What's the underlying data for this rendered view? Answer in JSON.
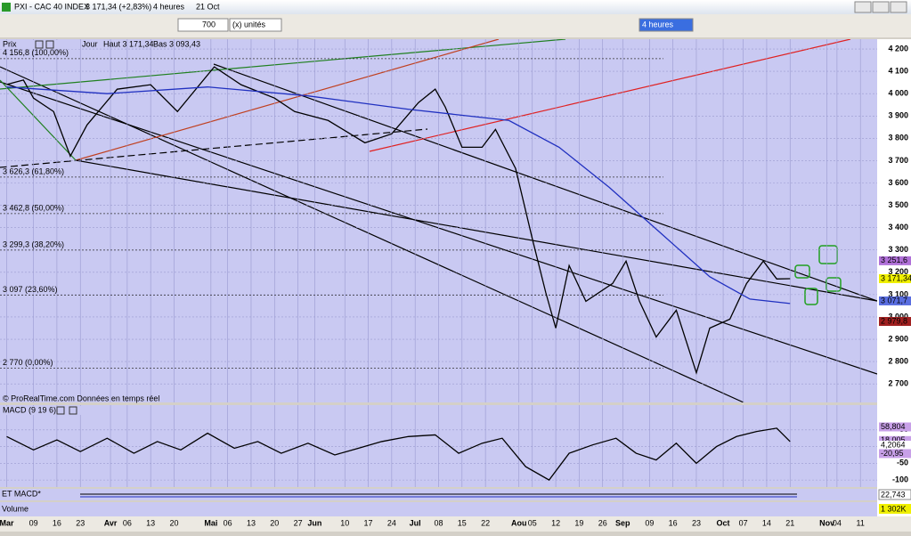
{
  "window": {
    "title": "PXI - CAC 40 INDEX",
    "price": "3 171,34 (+2,83%)",
    "period": "4 heures",
    "date": "21 Oct"
  },
  "toolbar": {
    "units_count": "700",
    "units": "(x) unités",
    "timeframe": "4 heures"
  },
  "chart_data": [
    {
      "type": "line",
      "title": "Prix",
      "period": "Jour",
      "high": "Haut 3 171,34",
      "low": "Bas 3 093,43",
      "source": "© ProRealTime.com  Données en temps réel",
      "xlim": [
        -2,
        260
      ],
      "ylim": [
        2617,
        4244
      ],
      "xticks": [
        {
          "value": 0,
          "label": "Mar"
        },
        {
          "value": 8,
          "label": "09"
        },
        {
          "value": 15,
          "label": "16"
        },
        {
          "value": 22,
          "label": "23"
        },
        {
          "value": 31,
          "label": "Avr"
        },
        {
          "value": 36,
          "label": "06"
        },
        {
          "value": 43,
          "label": "13"
        },
        {
          "value": 50,
          "label": "20"
        },
        {
          "value": 61,
          "label": "Mai"
        },
        {
          "value": 66,
          "label": "06"
        },
        {
          "value": 73,
          "label": "13"
        },
        {
          "value": 80,
          "label": "20"
        },
        {
          "value": 87,
          "label": "27"
        },
        {
          "value": 92,
          "label": "Jun"
        },
        {
          "value": 101,
          "label": "10"
        },
        {
          "value": 108,
          "label": "17"
        },
        {
          "value": 115,
          "label": "24"
        },
        {
          "value": 122,
          "label": "Jul"
        },
        {
          "value": 129,
          "label": "08"
        },
        {
          "value": 136,
          "label": "15"
        },
        {
          "value": 143,
          "label": "22"
        },
        {
          "value": 153,
          "label": "Aou"
        },
        {
          "value": 157,
          "label": "05"
        },
        {
          "value": 164,
          "label": "12"
        },
        {
          "value": 171,
          "label": "19"
        },
        {
          "value": 178,
          "label": "26"
        },
        {
          "value": 184,
          "label": "Sep"
        },
        {
          "value": 192,
          "label": "09"
        },
        {
          "value": 199,
          "label": "16"
        },
        {
          "value": 206,
          "label": "23"
        },
        {
          "value": 214,
          "label": "Oct"
        },
        {
          "value": 220,
          "label": "07"
        },
        {
          "value": 227,
          "label": "14"
        },
        {
          "value": 234,
          "label": "21"
        },
        {
          "value": 245,
          "label": "Nov"
        },
        {
          "value": 248,
          "label": "04"
        },
        {
          "value": 255,
          "label": "11"
        }
      ],
      "yticks": [
        {
          "value": 4200,
          "label": "4 200"
        },
        {
          "value": 4100,
          "label": "4 100"
        },
        {
          "value": 4000,
          "label": "4 000"
        },
        {
          "value": 3900,
          "label": "3 900"
        },
        {
          "value": 3800,
          "label": "3 800"
        },
        {
          "value": 3700,
          "label": "3 700"
        },
        {
          "value": 3600,
          "label": "3 600"
        },
        {
          "value": 3500,
          "label": "3 500"
        },
        {
          "value": 3400,
          "label": "3 400"
        },
        {
          "value": 3300,
          "label": "3 300"
        },
        {
          "value": 3200,
          "label": "3 200"
        },
        {
          "value": 3100,
          "label": "3 100"
        },
        {
          "value": 3000,
          "label": "3 000"
        },
        {
          "value": 2900,
          "label": "2 900"
        },
        {
          "value": 2800,
          "label": "2 800"
        },
        {
          "value": 2700,
          "label": "2 700"
        }
      ],
      "levels": [
        {
          "value": 4156.8,
          "label": "4 156,8 (100,00%)"
        },
        {
          "value": 3626.3,
          "label": "3 626,3 (61,80%)"
        },
        {
          "value": 3462.8,
          "label": "3 462,8 (50,00%)"
        },
        {
          "value": 3299.3,
          "label": "3 299,3 (38,20%)"
        },
        {
          "value": 3097,
          "label": "3 097 (23,60%)"
        },
        {
          "value": 2770,
          "label": "2 770 (0,00%)"
        }
      ],
      "price_labels": [
        {
          "value": 3251.6,
          "label": "3 251,6",
          "color": "#b070d8"
        },
        {
          "value": 3171.34,
          "label": "3 171,34",
          "color": "#f0f000"
        },
        {
          "value": 3071.7,
          "label": "3 071,7",
          "color": "#5a6ee0"
        },
        {
          "value": 2979.8,
          "label": "2 979,8",
          "color": "#a02020"
        }
      ],
      "series": [
        {
          "color": "#000000",
          "x": [
            0,
            5,
            8,
            14,
            19,
            24,
            33,
            43,
            51,
            62,
            70,
            80,
            86,
            96,
            107,
            115,
            123,
            128,
            131,
            136,
            142,
            146,
            152,
            157,
            161,
            164,
            168,
            173,
            181,
            185,
            189,
            194,
            200,
            206,
            210,
            216,
            221,
            226,
            230,
            234
          ],
          "values": [
            4041,
            4061,
            3980,
            3920,
            3720,
            3860,
            4020,
            4040,
            3920,
            4120,
            4040,
            3980,
            3920,
            3880,
            3780,
            3820,
            3960,
            4020,
            3940,
            3760,
            3760,
            3840,
            3665,
            3350,
            3110,
            2950,
            3230,
            3070,
            3150,
            3250,
            3070,
            2910,
            3030,
            2750,
            2950,
            2990,
            3150,
            3250,
            3170,
            3171.34
          ]
        },
        {
          "color": "#2030c0",
          "x": [
            0,
            30,
            60,
            90,
            120,
            150,
            165,
            180,
            195,
            210,
            222,
            234
          ],
          "values": [
            4030,
            4000,
            4030,
            3990,
            3930,
            3880,
            3760,
            3580,
            3380,
            3180,
            3080,
            3060
          ]
        }
      ]
    },
    {
      "type": "line",
      "title": "MACD (9 19 6)",
      "xlim": [
        -2,
        260
      ],
      "ylim": [
        -121,
        124
      ],
      "yticks": [
        50,
        0,
        -50,
        -100
      ],
      "price_labels": [
        {
          "value": 58.804,
          "label": "58,804",
          "color": "#c8a0e8"
        },
        {
          "value": 18.005,
          "label": "18,005",
          "color": "#c8a0e8"
        },
        {
          "value": 4.2064,
          "label": "4,2064",
          "color": "#ffffff"
        },
        {
          "value": -20.95,
          "label": "-20,95",
          "color": "#c8a0e8"
        }
      ],
      "series": [
        {
          "color": "#000000",
          "x": [
            0,
            8,
            15,
            22,
            30,
            38,
            45,
            52,
            60,
            68,
            75,
            82,
            90,
            98,
            105,
            112,
            120,
            128,
            135,
            142,
            148,
            155,
            162,
            168,
            175,
            182,
            188,
            194,
            200,
            206,
            212,
            218,
            224,
            230,
            234
          ],
          "values": [
            30,
            -10,
            20,
            -15,
            25,
            -20,
            15,
            -10,
            40,
            -5,
            15,
            -20,
            10,
            -25,
            -5,
            15,
            30,
            35,
            -20,
            10,
            25,
            -60,
            -100,
            -20,
            5,
            25,
            -20,
            -40,
            10,
            -50,
            0,
            30,
            45,
            55,
            15
          ]
        }
      ]
    }
  ],
  "panels": {
    "et_macd": {
      "label": "ET MACD*",
      "value_label": "22,743"
    },
    "volume": {
      "label": "Volume",
      "value_label": "1 302K"
    }
  }
}
